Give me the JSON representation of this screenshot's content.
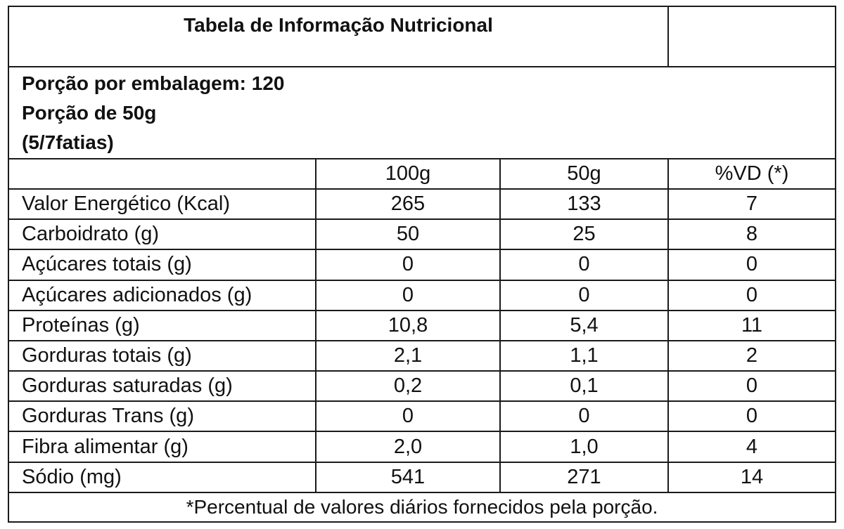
{
  "title": "Tabela de Informação Nutricional",
  "portion": {
    "per_package": "Porção por embalagem: 120",
    "size": "Porção de 50g",
    "slices": "(5/7fatias)"
  },
  "columns": {
    "c100g": "100g",
    "c50g": "50g",
    "vd": "%VD (*)"
  },
  "rows": [
    {
      "label": "Valor Energético (Kcal)",
      "v100": "265",
      "v50": "133",
      "vd": "7"
    },
    {
      "label": "Carboidrato (g)",
      "v100": "50",
      "v50": "25",
      "vd": "8"
    },
    {
      "label": "Açúcares totais (g)",
      "v100": "0",
      "v50": "0",
      "vd": "0"
    },
    {
      "label": "Açúcares adicionados (g)",
      "v100": "0",
      "v50": "0",
      "vd": "0"
    },
    {
      "label": "Proteínas (g)",
      "v100": "10,8",
      "v50": "5,4",
      "vd": "11"
    },
    {
      "label": "Gorduras totais (g)",
      "v100": "2,1",
      "v50": "1,1",
      "vd": "2"
    },
    {
      "label": "Gorduras saturadas (g)",
      "v100": "0,2",
      "v50": "0,1",
      "vd": "0"
    },
    {
      "label": "Gorduras Trans (g)",
      "v100": "0",
      "v50": "0",
      "vd": "0"
    },
    {
      "label": "Fibra alimentar (g)",
      "v100": "2,0",
      "v50": "1,0",
      "vd": "4"
    },
    {
      "label": "Sódio (mg)",
      "v100": "541",
      "v50": "271",
      "vd": "14"
    }
  ],
  "footnote": "*Percentual de valores diários fornecidos pela porção."
}
